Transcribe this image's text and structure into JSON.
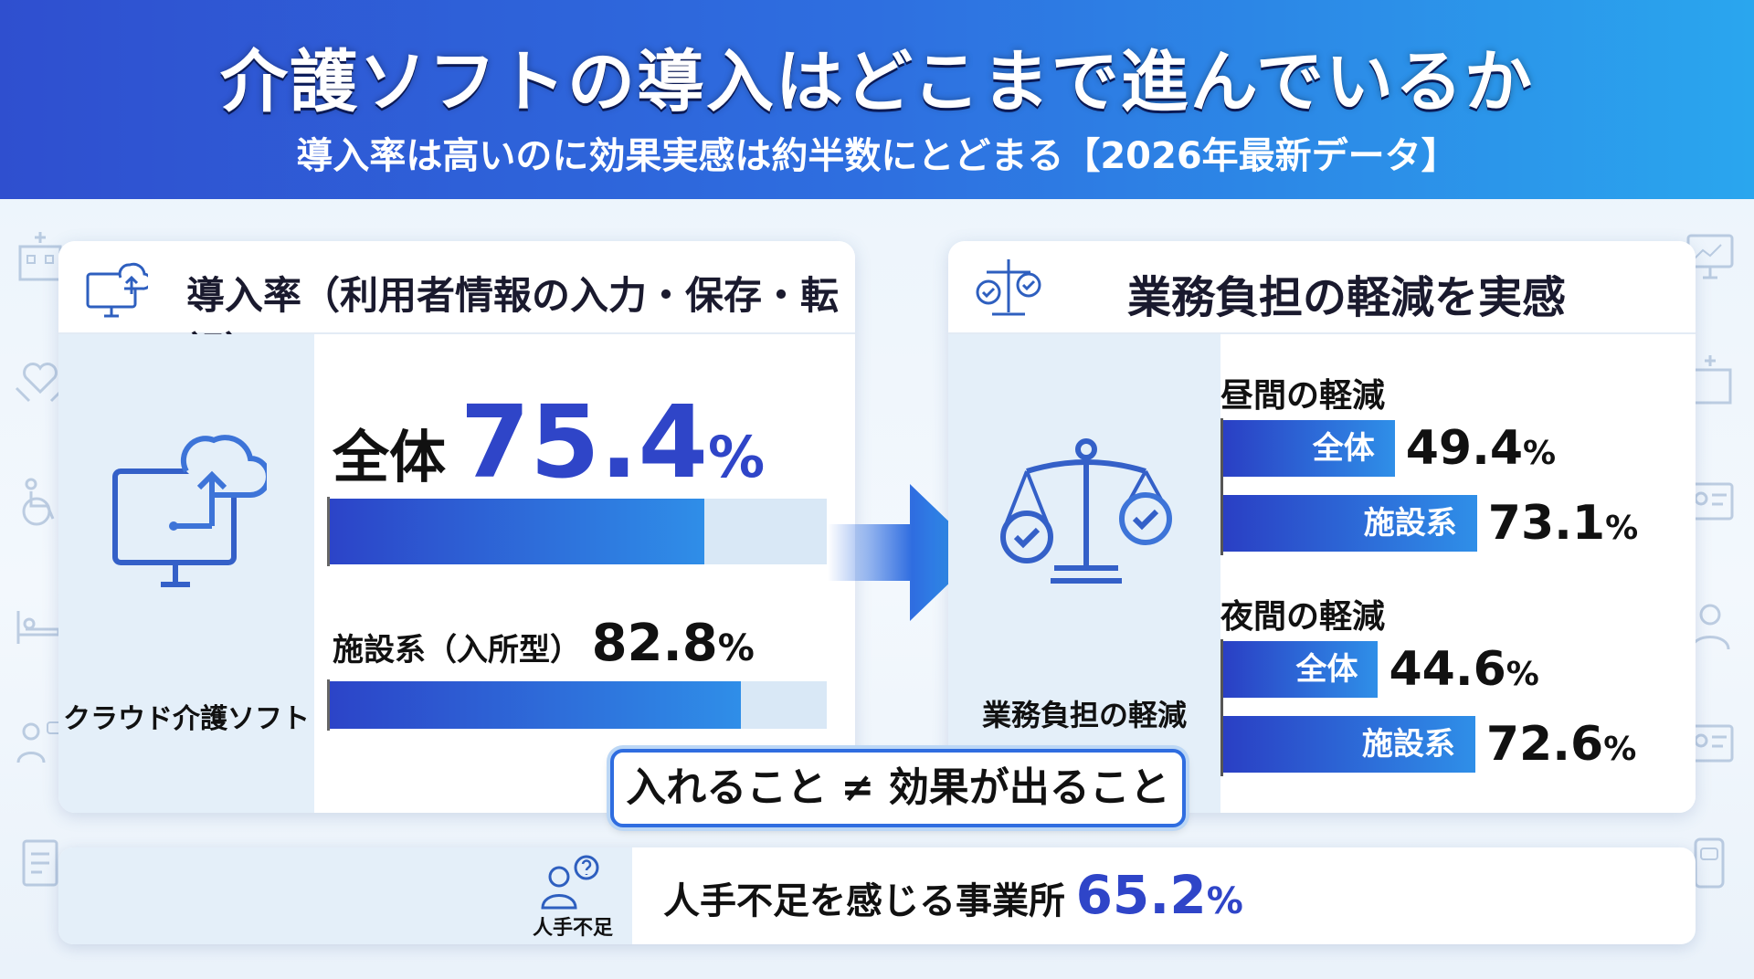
{
  "header": {
    "title": "介護ソフトの導入はどこまで進んでいるか",
    "subtitle": "導入率は高いのに効果実感は約半数にとどまる【2026年最新データ】"
  },
  "left_panel": {
    "title": "導入率（利用者情報の入力・保存・転記）",
    "icon_caption": "クラウド介護ソフト",
    "overall_label": "全体",
    "overall_value": "75.4",
    "facility_label": "施設系（入所型）",
    "facility_value": "82.8",
    "percent_sign": "%"
  },
  "right_panel": {
    "title": "業務負担の軽減を実感",
    "icon_caption": "業務負担の軽減",
    "day_label": "昼間の軽減",
    "night_label": "夜間の軽減",
    "overall_bar_label": "全体",
    "facility_bar_label": "施設系",
    "day_overall": "49.4",
    "day_facility": "73.1",
    "night_overall": "44.6",
    "night_facility": "72.6",
    "percent_sign": "%"
  },
  "callout": "入れること ≠ 効果が出ること",
  "bottom": {
    "icon_caption": "人手不足",
    "text": "人手不足を感じる事業所",
    "value": "65.2",
    "percent_sign": "%"
  },
  "colors": {
    "accent_blue": "#2f4fcf",
    "value_blue": "#2f45c8",
    "bar_light": "#2f8ee8"
  },
  "chart_data": [
    {
      "type": "bar",
      "title": "導入率（利用者情報の入力・保存・転記）",
      "categories": [
        "全体",
        "施設系（入所型）"
      ],
      "values": [
        75.4,
        82.8
      ],
      "ylim": [
        0,
        100
      ]
    },
    {
      "type": "bar",
      "title": "業務負担の軽減を実感",
      "categories": [
        "昼間の軽減",
        "夜間の軽減"
      ],
      "series": [
        {
          "name": "全体",
          "values": [
            49.4,
            44.6
          ]
        },
        {
          "name": "施設系",
          "values": [
            73.1,
            72.6
          ]
        }
      ],
      "ylim": [
        0,
        100
      ]
    },
    {
      "type": "bar",
      "categories": [
        "人手不足を感じる事業所"
      ],
      "values": [
        65.2
      ]
    }
  ]
}
